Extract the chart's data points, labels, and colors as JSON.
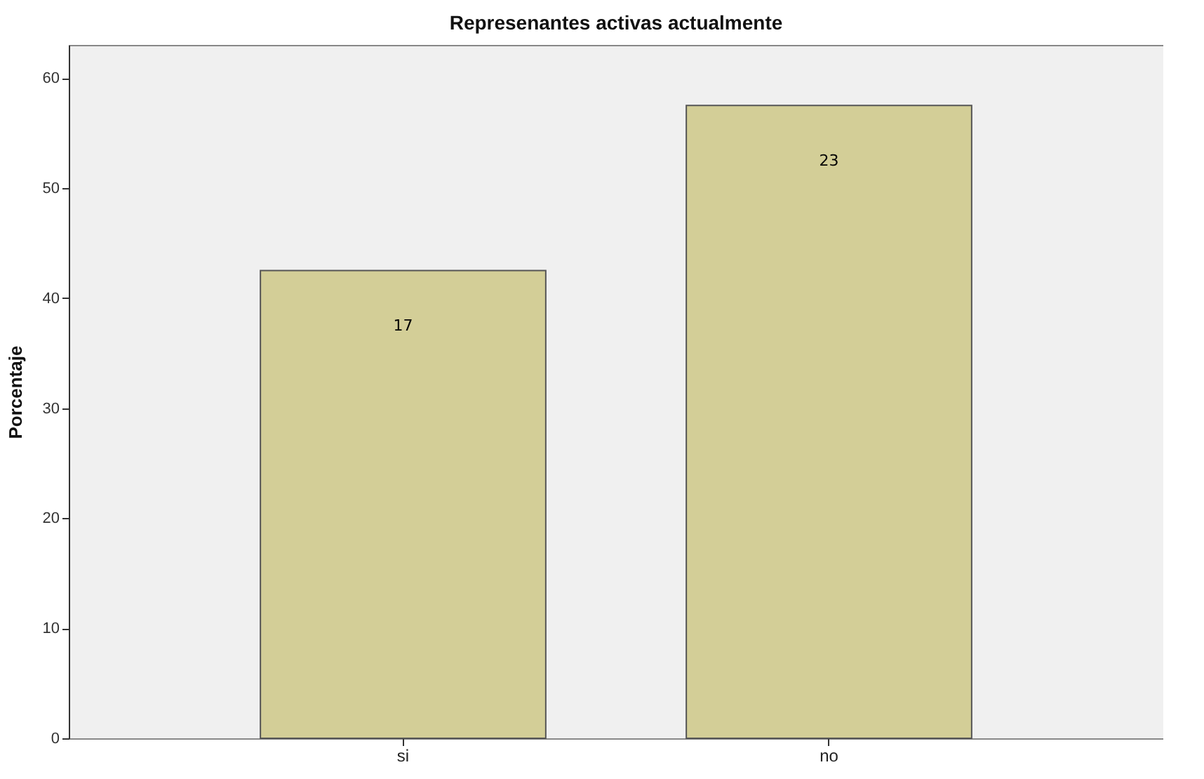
{
  "chart_data": {
    "type": "bar",
    "title": "Represenantes activas actualmente",
    "ylabel": "Porcentaje",
    "categories": [
      "si",
      "no"
    ],
    "values": [
      42.5,
      57.5
    ],
    "color": "#d3ce97",
    "annotations": [
      {
        "text": "17",
        "x": "si",
        "y": 42.5
      },
      {
        "text": "23",
        "x": "no",
        "y": 57.5
      }
    ],
    "ylim": [
      0,
      63
    ],
    "yticks": [
      0,
      10,
      20,
      30,
      40,
      50,
      60
    ],
    "grid": false
  }
}
